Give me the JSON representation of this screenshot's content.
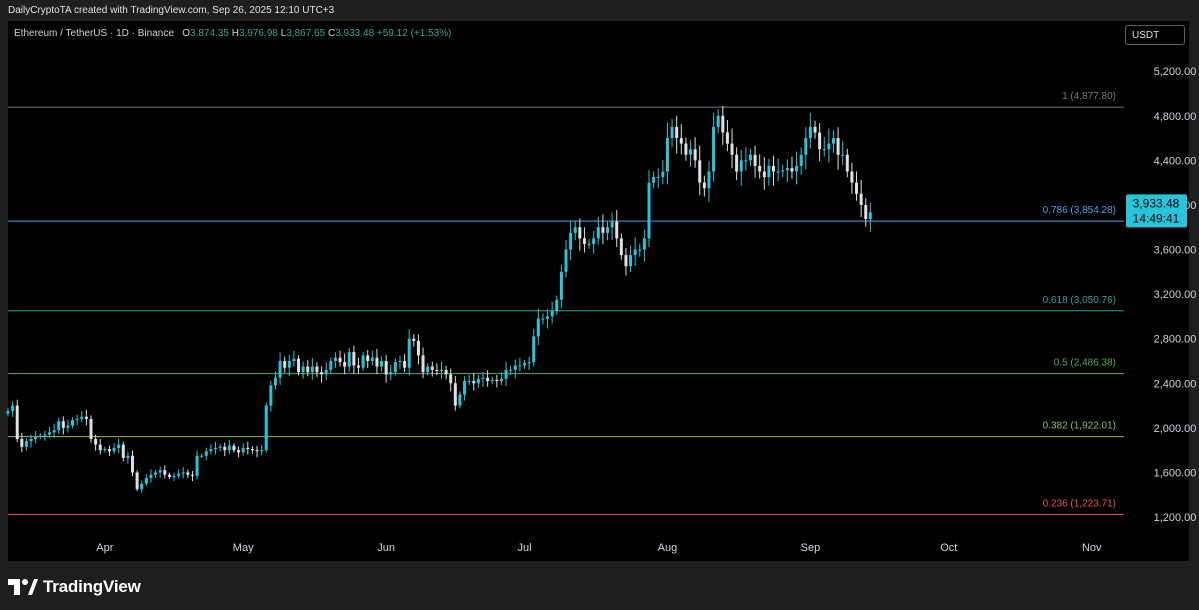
{
  "header": {
    "caption": "DailyCryptoTA created with TradingView.com, Sep 26, 2025 12:10 UTC+3"
  },
  "legend": {
    "symbol": "Ethereum / TetherUS · 1D · Binance",
    "o_label": "O",
    "o_value": "3,874.35",
    "h_label": "H",
    "h_value": "3,976.98",
    "l_label": "L",
    "l_value": "3,867.65",
    "c_label": "C",
    "c_value": "3,933.48",
    "change": "+59.12 (+1.53%)"
  },
  "currency_button": "USDT",
  "footer": {
    "brand": "TradingView"
  },
  "colors": {
    "up": "#26a69a",
    "up_bright": "#29b6f6",
    "down": "#e0e0e0",
    "accent": "#26c6da",
    "fib_1": "#9e9e9e",
    "fib_0786": "#42a5f5",
    "fib_0618": "#26a69a",
    "fib_05": "#4caf50",
    "fib_0382": "#8bc34a",
    "fib_0236": "#ef5350"
  },
  "chart_data": {
    "type": "candlestick",
    "symbol": "ETH/USDT",
    "timeframe": "1D",
    "x_range": [
      "2025-03-11",
      "2025-11-08"
    ],
    "ylim": [
      1030,
      5390
    ],
    "x_ticks": [
      {
        "label": "Apr",
        "date": "2025-04-01"
      },
      {
        "label": "May",
        "date": "2025-05-01"
      },
      {
        "label": "Jun",
        "date": "2025-06-01"
      },
      {
        "label": "Jul",
        "date": "2025-07-01"
      },
      {
        "label": "Aug",
        "date": "2025-08-01"
      },
      {
        "label": "Sep",
        "date": "2025-09-01"
      },
      {
        "label": "Oct",
        "date": "2025-10-01"
      },
      {
        "label": "Nov",
        "date": "2025-11-01"
      }
    ],
    "y_ticks": [
      {
        "label": "1,200.00",
        "value": 1200
      },
      {
        "label": "1,600.00",
        "value": 1600
      },
      {
        "label": "2,000.00",
        "value": 2000
      },
      {
        "label": "2,400.00",
        "value": 2400
      },
      {
        "label": "2,800.00",
        "value": 2800
      },
      {
        "label": "3,200.00",
        "value": 3200
      },
      {
        "label": "3,600.00",
        "value": 3600
      },
      {
        "label": "4,000.00",
        "value": 4000
      },
      {
        "label": "4,400.00",
        "value": 4400
      },
      {
        "label": "4,800.00",
        "value": 4800
      },
      {
        "label": "5,200.00",
        "value": 5200
      }
    ],
    "fib_levels": [
      {
        "label": "1 (4,877.80)",
        "value": 4877.8,
        "color": "#787b86"
      },
      {
        "label": "0.786 (3,854.28)",
        "value": 3854.28,
        "color": "#42a5f5"
      },
      {
        "label": "0.618 (3,050.76)",
        "value": 3050.76,
        "color": "#26a69a"
      },
      {
        "label": "0.5 (2,486.38)",
        "value": 2486.38,
        "color": "#4caf50"
      },
      {
        "label": "0.382 (1,922.01)",
        "value": 1922.01,
        "color": "#8bc34a"
      },
      {
        "label": "0.236 (1,223.71)",
        "value": 1223.71,
        "color": "#ef5350"
      }
    ],
    "last_price": {
      "price": "3,933.48",
      "countdown": "14:49:41",
      "value": 3933.48
    },
    "close_series_start": "2025-03-11",
    "closes": [
      2150,
      2200,
      1900,
      1830,
      1880,
      1900,
      1920,
      1930,
      1940,
      1960,
      1980,
      2060,
      2000,
      2020,
      2070,
      2080,
      2100,
      2080,
      1900,
      1850,
      1800,
      1810,
      1790,
      1820,
      1850,
      1730,
      1750,
      1600,
      1450,
      1500,
      1550,
      1580,
      1600,
      1620,
      1580,
      1560,
      1570,
      1590,
      1600,
      1580,
      1570,
      1750,
      1750,
      1790,
      1810,
      1820,
      1830,
      1800,
      1840,
      1800,
      1780,
      1820,
      1810,
      1800,
      1790,
      1800,
      2200,
      2380,
      2450,
      2600,
      2540,
      2600,
      2620,
      2500,
      2550,
      2500,
      2550,
      2500,
      2480,
      2520,
      2600,
      2630,
      2590,
      2550,
      2680,
      2560,
      2540,
      2650,
      2600,
      2630,
      2550,
      2600,
      2480,
      2500,
      2590,
      2600,
      2540,
      2800,
      2780,
      2650,
      2500,
      2550,
      2520,
      2510,
      2520,
      2480,
      2400,
      2200,
      2300,
      2420,
      2420,
      2400,
      2440,
      2450,
      2420,
      2430,
      2420,
      2440,
      2520,
      2520,
      2560,
      2560,
      2580,
      2590,
      2820,
      2980,
      2980,
      3000,
      3050,
      3150,
      3400,
      3600,
      3750,
      3800,
      3700,
      3650,
      3650,
      3700,
      3800,
      3750,
      3800,
      3850,
      3700,
      3550,
      3450,
      3550,
      3600,
      3600,
      3700,
      4200,
      4250,
      4250,
      4300,
      4600,
      4700,
      4600,
      4550,
      4450,
      4500,
      4400,
      4200,
      4150,
      4300,
      4700,
      4800,
      4650,
      4550,
      4450,
      4300,
      4400,
      4400,
      4450,
      4350,
      4300,
      4250,
      4350,
      4300,
      4300,
      4310,
      4330,
      4300,
      4350,
      4450,
      4600,
      4700,
      4650,
      4500,
      4500,
      4550,
      4600,
      4450,
      4450,
      4300,
      4200,
      4100,
      4000,
      3874,
      3933
    ]
  }
}
